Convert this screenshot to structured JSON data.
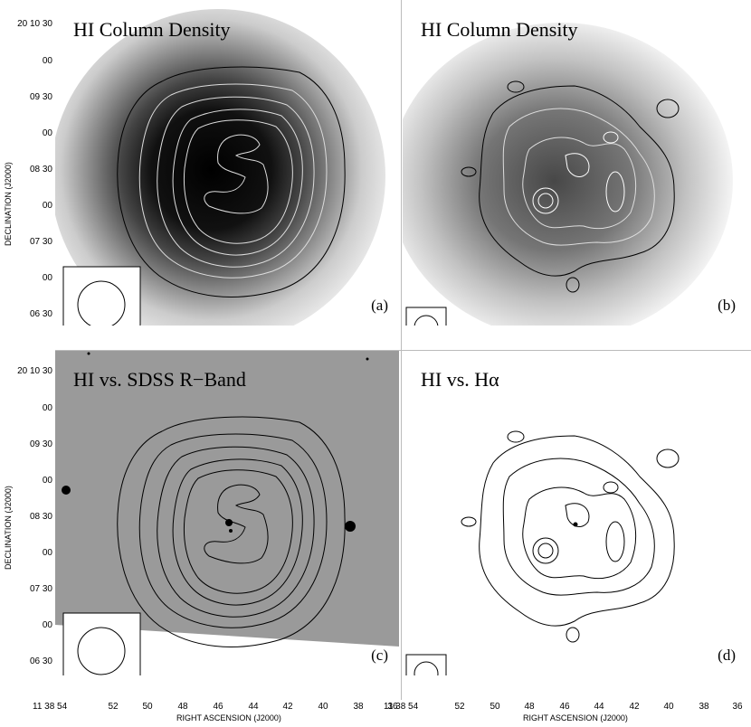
{
  "panels": [
    {
      "id": "a",
      "title": "HI Column Density",
      "label": "(a)"
    },
    {
      "id": "b",
      "title": "HI Column Density",
      "label": "(b)"
    },
    {
      "id": "c",
      "title": "HI vs. SDSS R−Band",
      "label": "(c)"
    },
    {
      "id": "d",
      "title": "HI vs. Hα",
      "label": "(d)"
    }
  ],
  "axes": {
    "ylabel": "DECLINATION (J2000)",
    "xlabel": "RIGHT ASCENSION (J2000)",
    "yticks": [
      "20 10 30",
      "00",
      "09 30",
      "00",
      "08 30",
      "00",
      "07 30",
      "00",
      "06 30"
    ],
    "xticks": [
      "11 38 54",
      "52",
      "50",
      "48",
      "46",
      "44",
      "42",
      "40",
      "38",
      "36"
    ],
    "xticks_right": [
      "11 38 54",
      "52",
      "50",
      "48",
      "46",
      "44",
      "42",
      "40",
      "38",
      "36"
    ]
  }
}
